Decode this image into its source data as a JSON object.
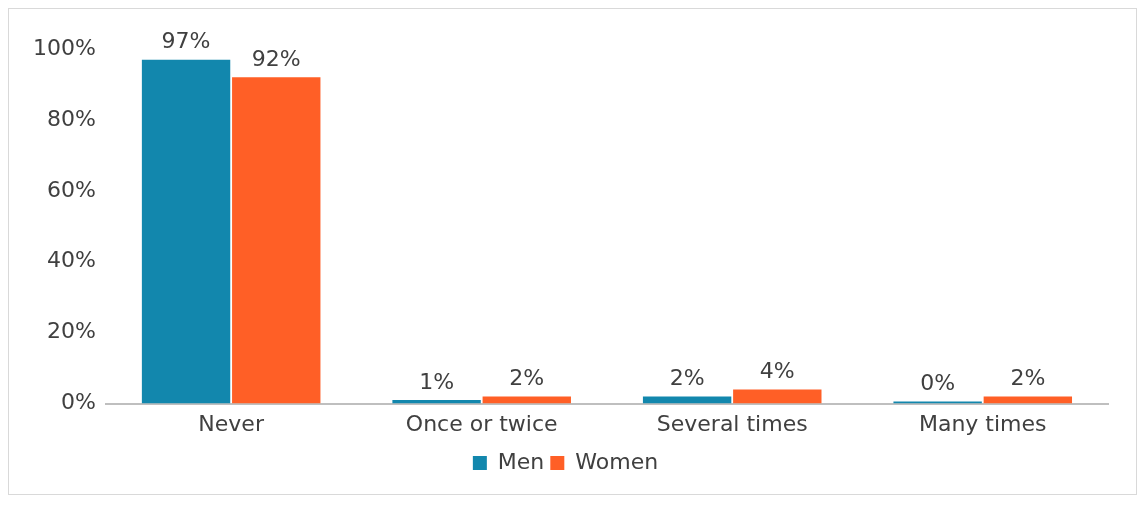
{
  "chart_data": {
    "type": "bar",
    "categories": [
      "Never",
      "Once or twice",
      "Several times",
      "Many times"
    ],
    "series": [
      {
        "name": "Men",
        "color": "#1287ad",
        "values": [
          97,
          1,
          2,
          0
        ],
        "value_labels": [
          "97%",
          "1%",
          "2%",
          "0%"
        ]
      },
      {
        "name": "Women",
        "color": "#ff5f26",
        "values": [
          92,
          2,
          4,
          2
        ],
        "value_labels": [
          "92%",
          "2%",
          "4%",
          "2%"
        ]
      }
    ],
    "ylim": [
      0,
      100
    ],
    "yticks": [
      {
        "value": 0,
        "label": "0%"
      },
      {
        "value": 20,
        "label": "20%"
      },
      {
        "value": 40,
        "label": "40%"
      },
      {
        "value": 60,
        "label": "60%"
      },
      {
        "value": 80,
        "label": "80%"
      },
      {
        "value": 100,
        "label": "100%"
      }
    ],
    "grid": false,
    "legend": "bottom"
  }
}
